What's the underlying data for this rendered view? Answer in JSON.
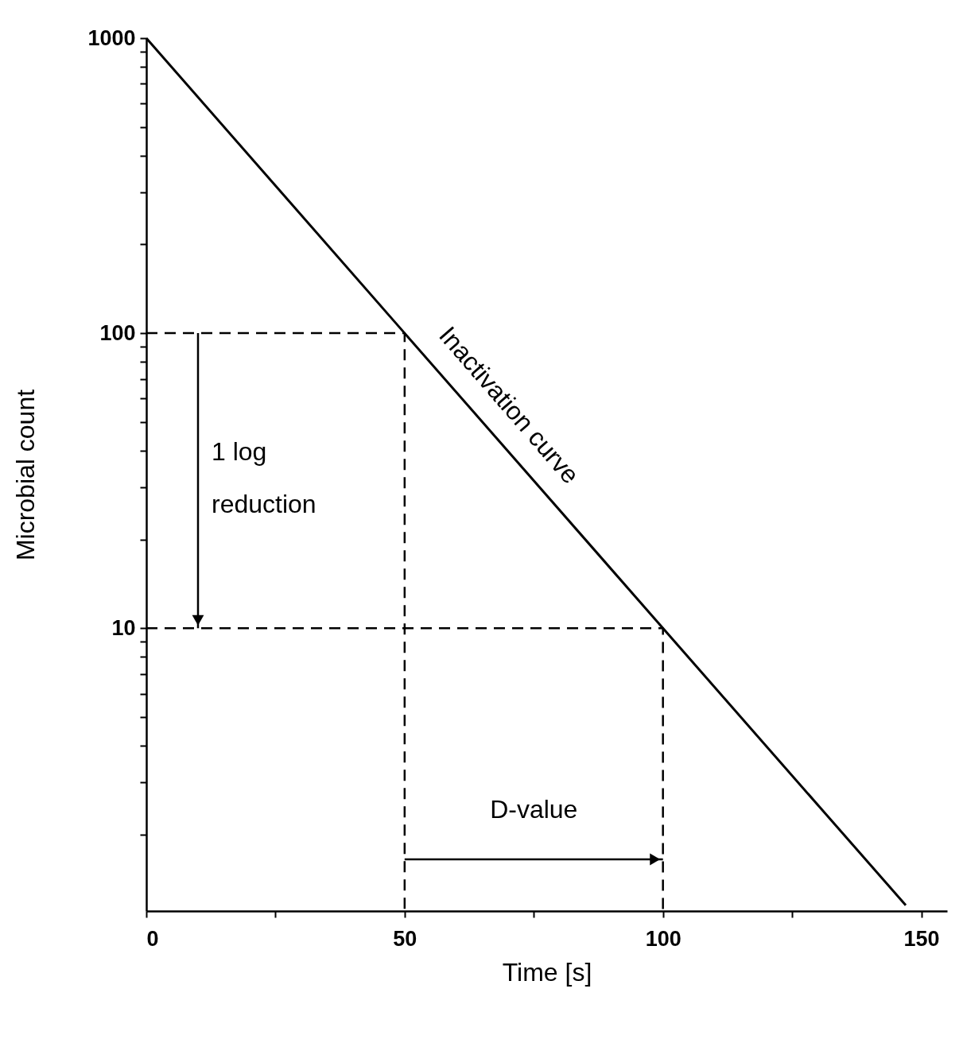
{
  "chart_data": {
    "type": "line",
    "xlabel": "Time [s]",
    "ylabel": "Microbial count",
    "log": "y",
    "xlim": [
      0,
      155
    ],
    "xticks": [
      0,
      {
        "value": 25,
        "label": null
      },
      50,
      {
        "value": 75,
        "label": null
      },
      100,
      {
        "value": 125,
        "label": null
      },
      150
    ],
    "ylim": [
      1.1,
      1000
    ],
    "yticks": [
      {
        "value": 2,
        "label": null
      },
      {
        "value": 3,
        "label": null
      },
      {
        "value": 4,
        "label": null
      },
      {
        "value": 5,
        "label": null
      },
      {
        "value": 6,
        "label": null
      },
      {
        "value": 7,
        "label": null
      },
      {
        "value": 8,
        "label": null
      },
      {
        "value": 9,
        "label": null
      },
      10,
      {
        "value": 20,
        "label": null
      },
      {
        "value": 30,
        "label": null
      },
      {
        "value": 40,
        "label": null
      },
      {
        "value": 50,
        "label": null
      },
      {
        "value": 60,
        "label": null
      },
      {
        "value": 70,
        "label": null
      },
      {
        "value": 80,
        "label": null
      },
      {
        "value": 90,
        "label": null
      },
      100,
      {
        "value": 200,
        "label": null
      },
      {
        "value": 300,
        "label": null
      },
      {
        "value": 400,
        "label": null
      },
      {
        "value": 500,
        "label": null
      },
      {
        "value": 600,
        "label": null
      },
      {
        "value": 700,
        "label": null
      },
      {
        "value": 800,
        "label": null
      },
      {
        "value": 900,
        "label": null
      },
      1000
    ],
    "grid": false,
    "series": [
      {
        "name": "Inactivation curve",
        "color": "#000000",
        "line_style": "solid",
        "x": [
          0,
          50,
          100,
          147
        ],
        "values": [
          1000,
          100,
          10,
          1.15
        ]
      },
      {
        "color": "#000000",
        "line_style": "dashed",
        "x": [
          0,
          50,
          50
        ],
        "values": [
          100,
          100,
          1.1
        ]
      },
      {
        "color": "#000000",
        "line_style": "dashed",
        "x": [
          0,
          100,
          100
        ],
        "values": [
          10,
          10,
          1.1
        ]
      }
    ],
    "annotations": [
      "1 log\nreduction",
      "D-value"
    ]
  }
}
